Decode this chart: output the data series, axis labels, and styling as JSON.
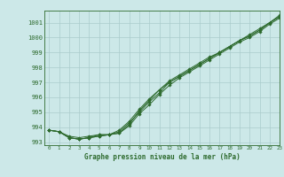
{
  "title": "Graphe pression niveau de la mer (hPa)",
  "bg_color": "#cce8e8",
  "grid_color": "#aacccc",
  "line_color": "#2d6a2d",
  "xlim": [
    -0.5,
    23
  ],
  "ylim": [
    992.8,
    1001.8
  ],
  "yticks": [
    993,
    994,
    995,
    996,
    997,
    998,
    999,
    1000,
    1001
  ],
  "xticks": [
    0,
    1,
    2,
    3,
    4,
    5,
    6,
    7,
    8,
    9,
    10,
    11,
    12,
    13,
    14,
    15,
    16,
    17,
    18,
    19,
    20,
    21,
    22,
    23
  ],
  "line1": [
    993.8,
    993.7,
    993.3,
    993.2,
    993.3,
    993.4,
    993.5,
    993.6,
    994.1,
    994.9,
    995.5,
    996.2,
    996.8,
    997.3,
    997.7,
    998.1,
    998.5,
    998.9,
    999.3,
    999.7,
    1000.0,
    1000.4,
    1000.9,
    1001.3
  ],
  "line2": [
    993.8,
    993.7,
    993.3,
    993.2,
    993.3,
    993.4,
    993.5,
    993.8,
    994.4,
    995.2,
    995.9,
    996.5,
    997.1,
    997.5,
    997.9,
    998.3,
    998.7,
    999.0,
    999.4,
    999.8,
    1000.1,
    1000.5,
    1001.0,
    1001.4
  ],
  "line3": [
    993.8,
    993.7,
    993.4,
    993.3,
    993.4,
    993.5,
    993.5,
    993.7,
    994.3,
    995.0,
    995.7,
    996.3,
    997.0,
    997.4,
    997.8,
    998.2,
    998.6,
    999.0,
    999.4,
    999.8,
    1000.2,
    1000.6,
    1001.0,
    1001.5
  ],
  "line4": [
    993.8,
    993.7,
    993.3,
    993.2,
    993.3,
    993.5,
    993.5,
    993.6,
    994.2,
    995.1,
    995.8,
    996.5,
    997.0,
    997.4,
    997.8,
    998.2,
    998.6,
    999.0,
    999.4,
    999.8,
    1000.1,
    1000.5,
    1001.0,
    1001.4
  ]
}
